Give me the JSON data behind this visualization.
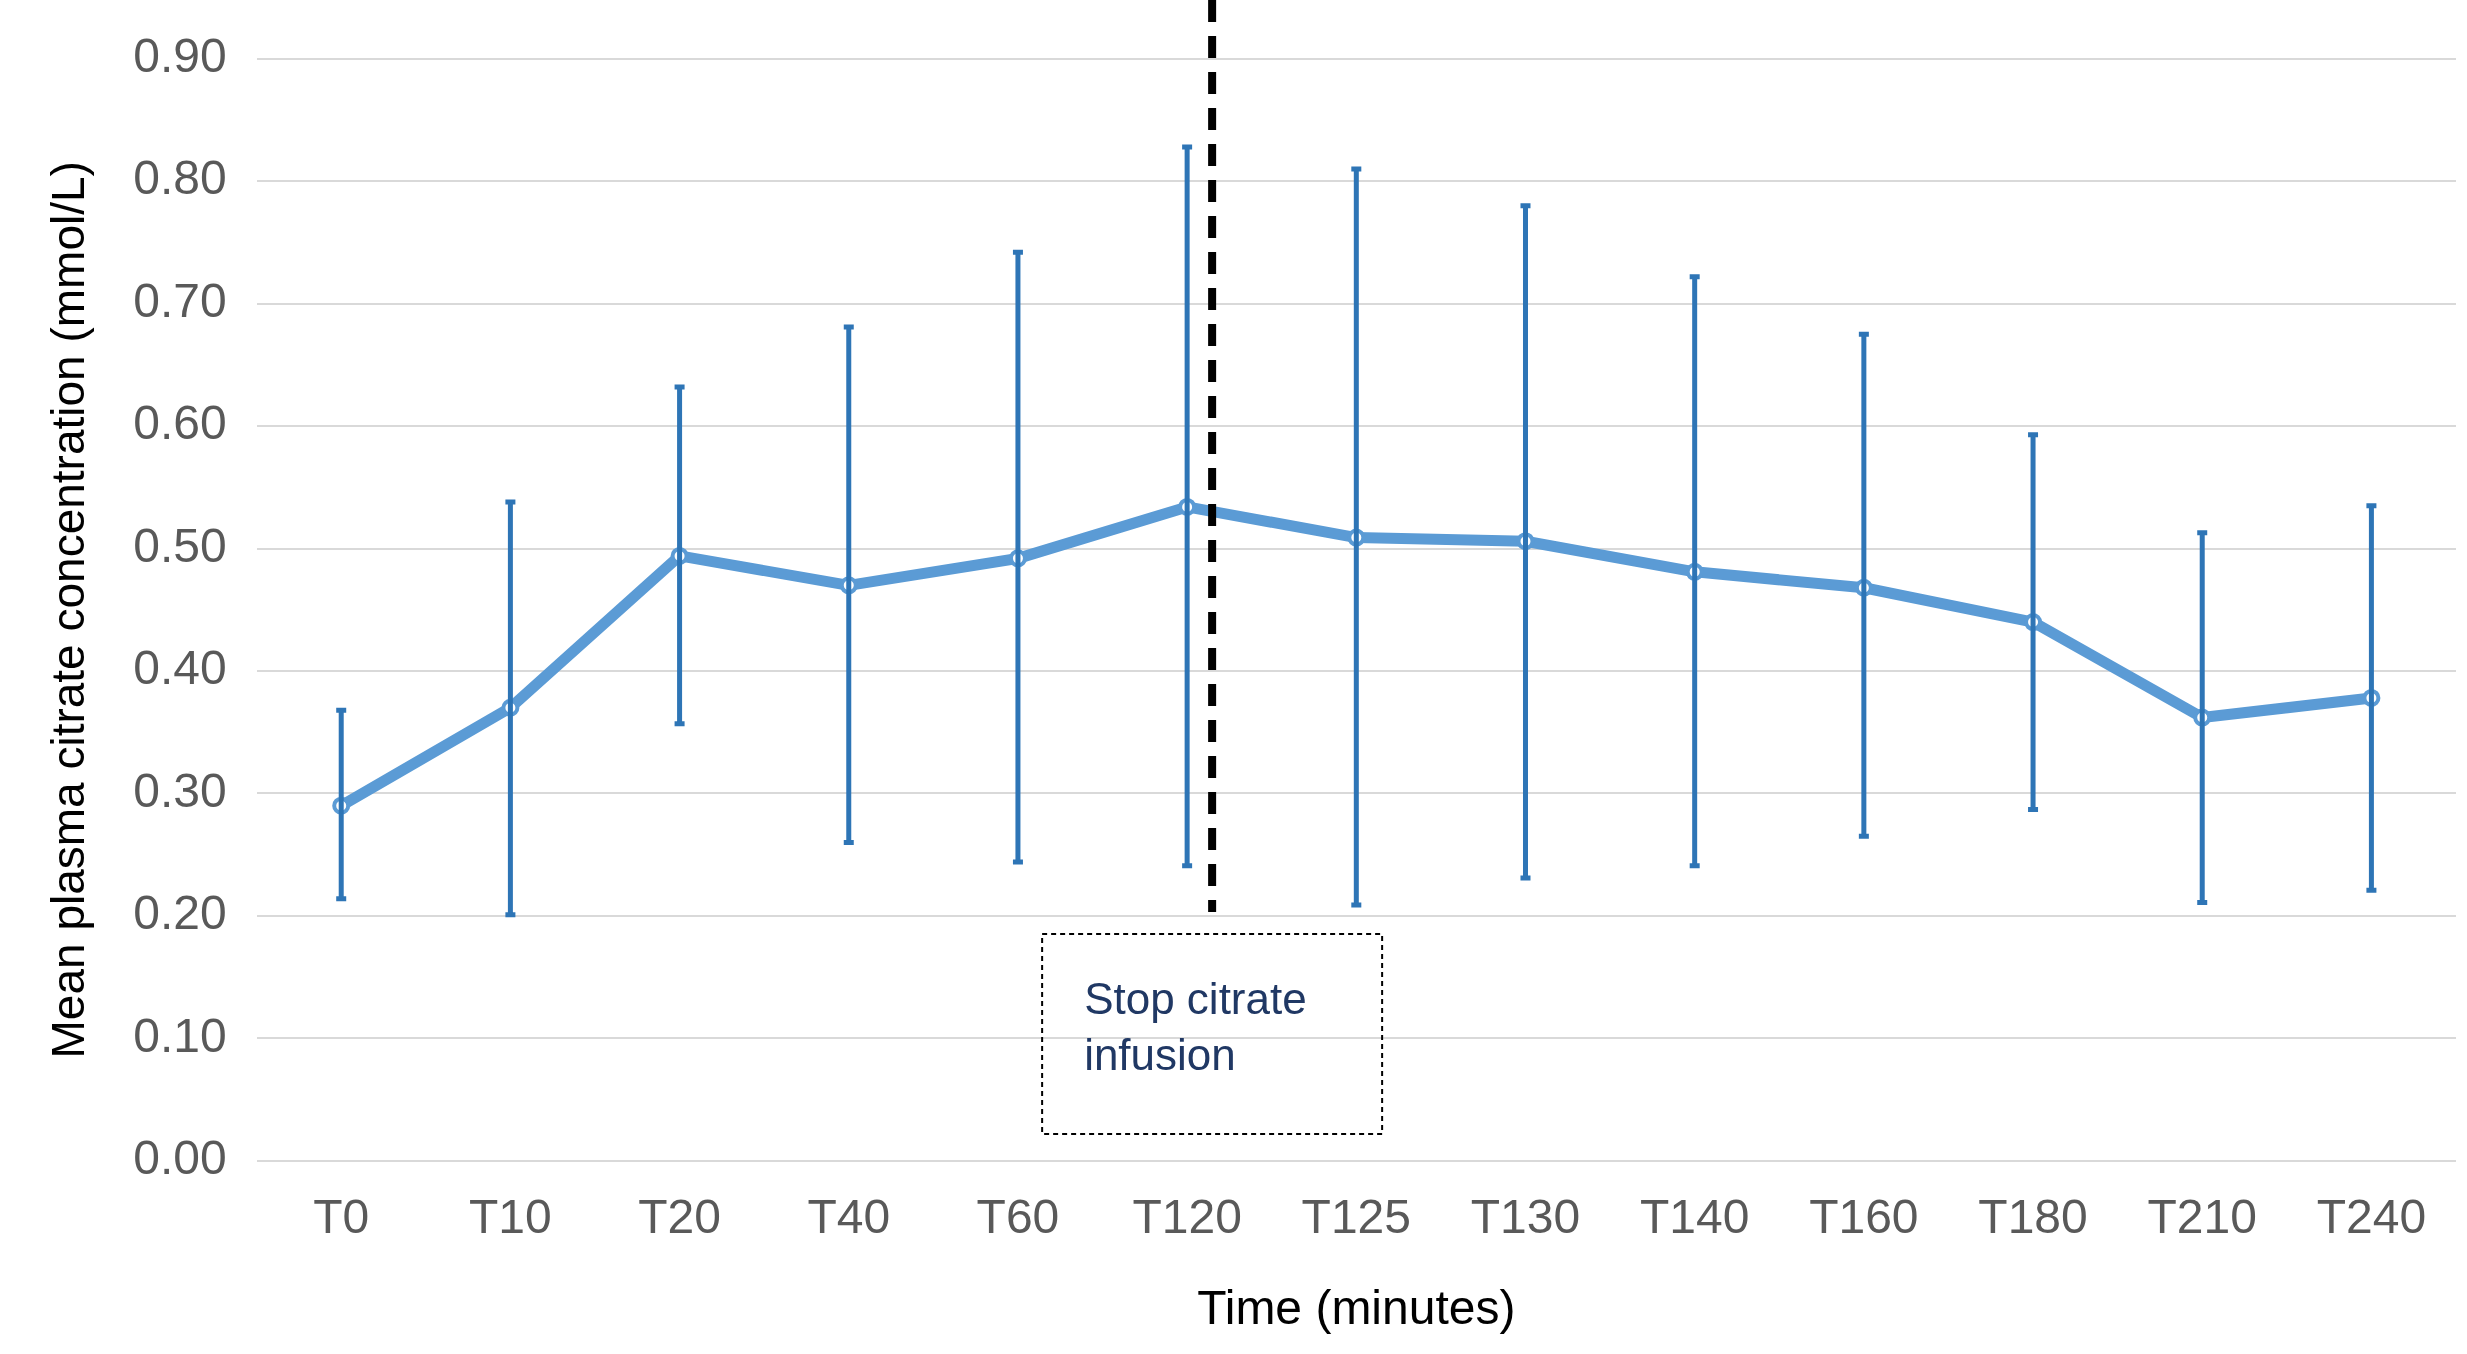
{
  "chart_data": {
    "type": "line",
    "xlabel": "Time (minutes)",
    "ylabel": "Mean plasma citrate concentration (mmol/L)",
    "categories": [
      "T0",
      "T10",
      "T20",
      "T40",
      "T60",
      "T120",
      "T125",
      "T130",
      "T140",
      "T160",
      "T180",
      "T210",
      "T240"
    ],
    "series": [
      {
        "color": "#5b9bd5",
        "values": [
          0.29,
          0.37,
          0.494,
          0.47,
          0.492,
          0.534,
          0.509,
          0.506,
          0.481,
          0.468,
          0.44,
          0.362,
          0.378
        ],
        "errors": [
          [
            0.214,
            0.368
          ],
          [
            0.201,
            0.538
          ],
          [
            0.357,
            0.632
          ],
          [
            0.26,
            0.681
          ],
          [
            0.244,
            0.742
          ],
          [
            0.241,
            0.828
          ],
          [
            0.209,
            0.81
          ],
          [
            0.231,
            0.78
          ],
          [
            0.241,
            0.722
          ],
          [
            0.265,
            0.675
          ],
          [
            0.287,
            0.593
          ],
          [
            0.211,
            0.513
          ],
          [
            0.221,
            0.535
          ]
        ]
      }
    ],
    "ylim": [
      0,
      0.9
    ],
    "yticks": [
      {
        "value": 0,
        "label": "0.00"
      },
      {
        "value": 0.1,
        "label": "0.10"
      },
      {
        "value": 0.2,
        "label": "0.20"
      },
      {
        "value": 0.3,
        "label": "0.30"
      },
      {
        "value": 0.4,
        "label": "0.40"
      },
      {
        "value": 0.5,
        "label": "0.50"
      },
      {
        "value": 0.6,
        "label": "0.60"
      },
      {
        "value": 0.7,
        "label": "0.70"
      },
      {
        "value": 0.8,
        "label": "0.80"
      },
      {
        "value": 0.9,
        "label": "0.90"
      }
    ],
    "grid": "y",
    "legend": false,
    "marker": "circle",
    "line_style": "solid",
    "ref_lines": [
      {
        "axis": "x",
        "value": "T120",
        "label": "Stop citrate infusion",
        "color": "#000000",
        "line_style": "dashed"
      }
    ]
  }
}
